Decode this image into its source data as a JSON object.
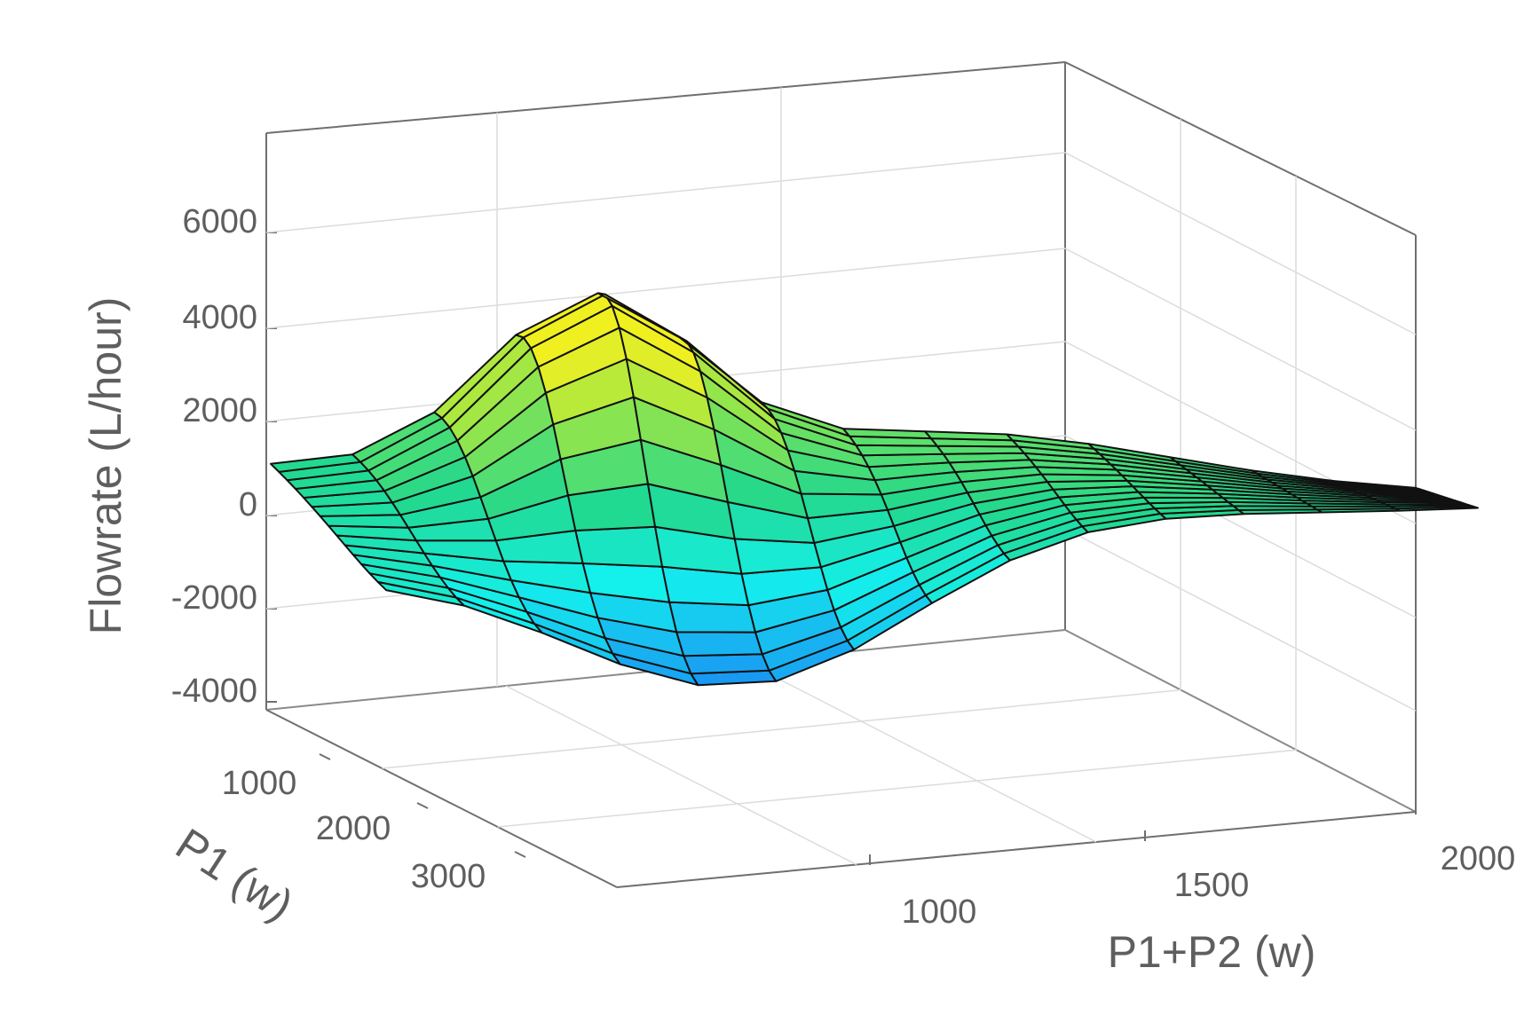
{
  "chart_data": {
    "type": "surface",
    "title": "",
    "zlabel": "Flowrate (L/hour)",
    "ylabel": "P1 (w)",
    "xlabel": "P1+P2 (w)",
    "z_ticks": [
      "6000",
      "4000",
      "2000",
      "0",
      "-2000",
      "-4000"
    ],
    "p1_ticks": [
      "1000",
      "2000",
      "3000"
    ],
    "p1p2_ticks": [
      "1000",
      "1500",
      "2000"
    ],
    "colormap": [
      "#1a5ef0",
      "#18a8f2",
      "#14f0ec",
      "#22d88c",
      "#8ae450",
      "#f0f020"
    ],
    "grid": true,
    "mesh_size": [
      15,
      15
    ],
    "z_range": [
      -3400,
      4400
    ],
    "note_values": {
      "peak": 4400,
      "trough": -3400,
      "plateau": 1800
    }
  }
}
